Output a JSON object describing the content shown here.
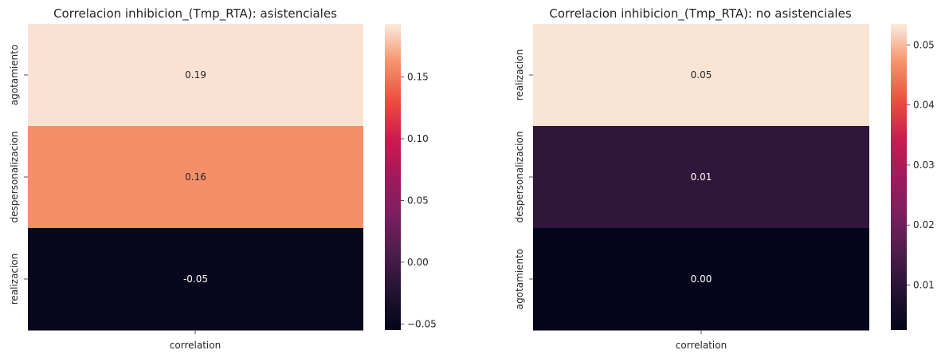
{
  "chart_data": [
    {
      "type": "heatmap",
      "title": "Correlacion inhibicion_(Tmp_RTA): asistenciales",
      "columns": [
        "correlation"
      ],
      "rows": [
        "agotamiento",
        "despersonalizacion",
        "realizacion"
      ],
      "values": [
        0.19,
        0.16,
        -0.05
      ],
      "value_labels": [
        "0.19",
        "0.16",
        "-0.05"
      ],
      "colorbar": {
        "range": [
          -0.055,
          0.193
        ],
        "ticks": [
          -0.05,
          0.0,
          0.05,
          0.1,
          0.15
        ],
        "tick_labels": [
          "−0.05",
          "0.00",
          "0.05",
          "0.10",
          "0.15"
        ]
      },
      "colormap": "rocket"
    },
    {
      "type": "heatmap",
      "title": "Correlacion inhibicion_(Tmp_RTA): no asistenciales",
      "columns": [
        "correlation"
      ],
      "rows": [
        "realizacion",
        "despersonalizacion",
        "agotamiento"
      ],
      "values": [
        0.053,
        0.011,
        0.003
      ],
      "value_labels": [
        "0.05",
        "0.01",
        "0.00"
      ],
      "colorbar": {
        "range": [
          0.0025,
          0.0535
        ],
        "ticks": [
          0.01,
          0.02,
          0.03,
          0.04,
          0.05
        ],
        "tick_labels": [
          "0.01",
          "0.02",
          "0.03",
          "0.04",
          "0.05"
        ]
      },
      "colormap": "rocket"
    }
  ]
}
